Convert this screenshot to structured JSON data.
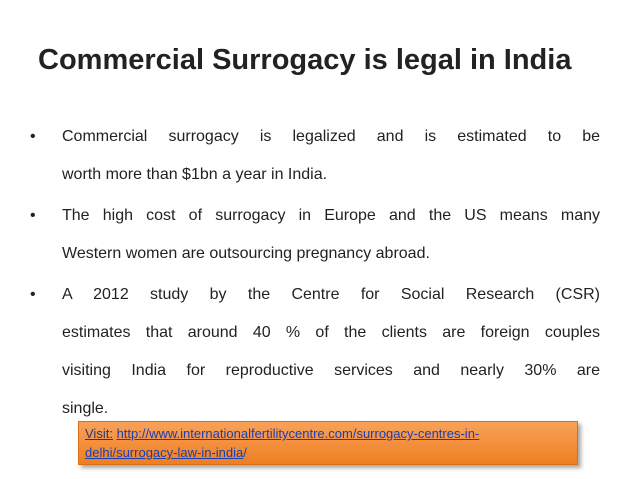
{
  "title": "Commercial Surrogacy is legal in India",
  "bullets": [
    {
      "lines": [
        "Commercial surrogacy is legalized and is estimated to be",
        "worth more than $1bn a year in India."
      ]
    },
    {
      "lines": [
        "The high cost of surrogacy in Europe and the US means many",
        "Western women are outsourcing pregnancy abroad."
      ]
    },
    {
      "lines": [
        "A 2012 study by the Centre for Social Research (CSR)",
        "estimates that around 40 % of the clients are foreign couples",
        "visiting India for reproductive services and nearly 30% are",
        "single."
      ]
    }
  ],
  "visit": {
    "label": "Visit:",
    "link_lines": [
      "http://www.internationalfertilitycentre.com/surrogacy-centres-in-",
      "delhi/surrogacy-law-in-india"
    ],
    "suffix": "/"
  }
}
